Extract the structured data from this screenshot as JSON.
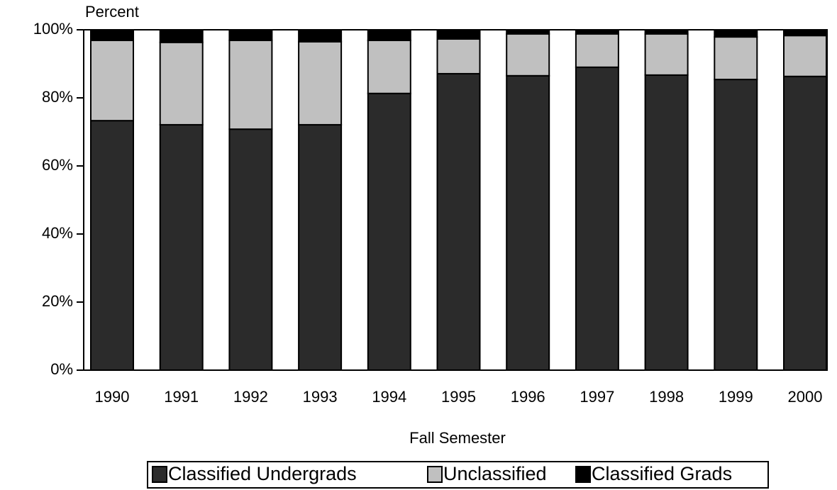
{
  "chart_data": {
    "type": "stacked_bar",
    "y_label": "Percent",
    "x_label": "Fall Semester",
    "categories": [
      "1990",
      "1991",
      "1992",
      "1993",
      "1994",
      "1995",
      "1996",
      "1997",
      "1998",
      "1999",
      "2000"
    ],
    "series": [
      {
        "name": "Classified Undergrads",
        "color": "#2b2b2b",
        "values": [
          73.3,
          72.1,
          70.8,
          72.1,
          81.3,
          87.1,
          86.5,
          89.0,
          86.7,
          85.4,
          86.3
        ]
      },
      {
        "name": "Unclassified",
        "color": "#c0c0c0",
        "values": [
          23.6,
          24.2,
          26.1,
          24.4,
          15.6,
          10.2,
          12.3,
          9.8,
          12.1,
          12.5,
          12.0
        ]
      },
      {
        "name": "Classified Grads",
        "color": "#000000",
        "values": [
          3.1,
          3.7,
          3.1,
          3.5,
          3.1,
          2.7,
          1.2,
          1.2,
          1.2,
          2.1,
          1.7
        ]
      }
    ],
    "ylim": [
      0,
      100
    ],
    "yticks": [
      {
        "value": 0,
        "label": "0%"
      },
      {
        "value": 20,
        "label": "20%"
      },
      {
        "value": 40,
        "label": "40%"
      },
      {
        "value": 60,
        "label": "60%"
      },
      {
        "value": 80,
        "label": "80%"
      },
      {
        "value": 100,
        "label": "100%"
      }
    ],
    "grid": true,
    "legend": "bottom"
  }
}
